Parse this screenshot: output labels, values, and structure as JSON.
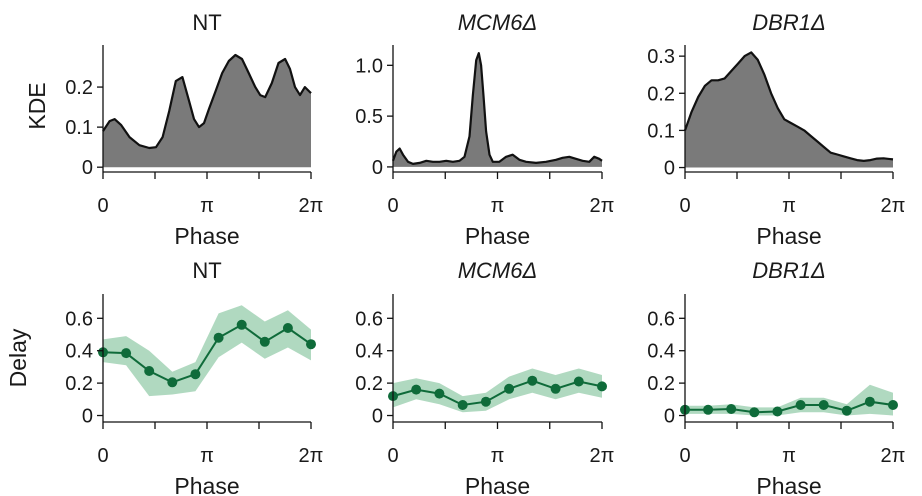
{
  "figure": {
    "row_labels": {
      "kde": "KDE",
      "delay": "Delay"
    },
    "x_label": "Phase",
    "colors": {
      "kde_fill": "#7a7a7a",
      "kde_line": "#111111",
      "delay_line": "#0f6b3a",
      "delay_band": "#9ccfb0",
      "axis": "#111111"
    }
  },
  "chart_data": [
    {
      "type": "area",
      "title": "NT",
      "title_italic": false,
      "xlabel": "Phase",
      "ylabel": "KDE",
      "xlim": [
        0,
        6.2832
      ],
      "ylim": [
        -0.012,
        0.305
      ],
      "xticks": [
        {
          "v": 0,
          "label": "0"
        },
        {
          "v": 3.1416,
          "label": "π"
        },
        {
          "v": 6.2832,
          "label": "2π"
        }
      ],
      "xminor": [
        1.5708,
        4.7124
      ],
      "yticks": [
        {
          "v": 0,
          "label": "0"
        },
        {
          "v": 0.1,
          "label": "0.1"
        },
        {
          "v": 0.2,
          "label": "0.2"
        }
      ],
      "x": [
        0,
        0.2,
        0.35,
        0.55,
        0.8,
        1.1,
        1.4,
        1.6,
        1.8,
        2.0,
        2.2,
        2.4,
        2.6,
        2.75,
        2.9,
        3.05,
        3.2,
        3.4,
        3.6,
        3.8,
        4.0,
        4.2,
        4.4,
        4.6,
        4.75,
        4.9,
        5.1,
        5.3,
        5.5,
        5.65,
        5.8,
        5.95,
        6.1,
        6.2832
      ],
      "values": [
        0.09,
        0.115,
        0.12,
        0.105,
        0.075,
        0.055,
        0.048,
        0.05,
        0.075,
        0.14,
        0.215,
        0.225,
        0.165,
        0.12,
        0.1,
        0.11,
        0.145,
        0.19,
        0.235,
        0.265,
        0.28,
        0.27,
        0.235,
        0.2,
        0.18,
        0.175,
        0.21,
        0.26,
        0.27,
        0.245,
        0.2,
        0.18,
        0.2,
        0.185
      ]
    },
    {
      "type": "area",
      "title": "MCM6Δ",
      "title_italic": true,
      "xlabel": "Phase",
      "ylabel": "",
      "xlim": [
        0,
        6.2832
      ],
      "ylim": [
        -0.05,
        1.2
      ],
      "xticks": [
        {
          "v": 0,
          "label": "0"
        },
        {
          "v": 3.1416,
          "label": "π"
        },
        {
          "v": 6.2832,
          "label": "2π"
        }
      ],
      "xminor": [
        1.5708,
        4.7124
      ],
      "yticks": [
        {
          "v": 0,
          "label": "0"
        },
        {
          "v": 0.5,
          "label": "0.5"
        },
        {
          "v": 1.0,
          "label": "1.0"
        }
      ],
      "x": [
        0,
        0.1,
        0.2,
        0.3,
        0.45,
        0.6,
        0.8,
        1.0,
        1.2,
        1.4,
        1.6,
        1.8,
        2.0,
        2.15,
        2.3,
        2.4,
        2.5,
        2.58,
        2.65,
        2.72,
        2.8,
        2.9,
        3.0,
        3.2,
        3.4,
        3.6,
        3.8,
        4.0,
        4.3,
        4.6,
        4.9,
        5.1,
        5.3,
        5.5,
        5.7,
        5.9,
        6.05,
        6.2,
        6.2832
      ],
      "values": [
        0.06,
        0.15,
        0.18,
        0.12,
        0.05,
        0.03,
        0.04,
        0.06,
        0.05,
        0.05,
        0.06,
        0.05,
        0.06,
        0.1,
        0.3,
        0.7,
        1.05,
        1.12,
        1.0,
        0.7,
        0.35,
        0.12,
        0.05,
        0.05,
        0.1,
        0.12,
        0.07,
        0.05,
        0.04,
        0.05,
        0.07,
        0.09,
        0.1,
        0.08,
        0.06,
        0.05,
        0.1,
        0.08,
        0.06
      ]
    },
    {
      "type": "area",
      "title": "DBR1Δ",
      "title_italic": true,
      "xlabel": "Phase",
      "ylabel": "",
      "xlim": [
        0,
        6.2832
      ],
      "ylim": [
        -0.012,
        0.33
      ],
      "xticks": [
        {
          "v": 0,
          "label": "0"
        },
        {
          "v": 3.1416,
          "label": "π"
        },
        {
          "v": 6.2832,
          "label": "2π"
        }
      ],
      "xminor": [
        1.5708,
        4.7124
      ],
      "yticks": [
        {
          "v": 0,
          "label": "0"
        },
        {
          "v": 0.1,
          "label": "0.1"
        },
        {
          "v": 0.2,
          "label": "0.2"
        },
        {
          "v": 0.3,
          "label": "0.3"
        }
      ],
      "x": [
        0,
        0.2,
        0.4,
        0.6,
        0.8,
        1.0,
        1.2,
        1.4,
        1.6,
        1.8,
        2.0,
        2.2,
        2.4,
        2.6,
        2.8,
        3.0,
        3.2,
        3.4,
        3.6,
        3.8,
        4.0,
        4.2,
        4.4,
        4.6,
        4.8,
        5.0,
        5.2,
        5.4,
        5.6,
        5.8,
        6.0,
        6.2832
      ],
      "values": [
        0.1,
        0.15,
        0.19,
        0.22,
        0.235,
        0.235,
        0.24,
        0.26,
        0.28,
        0.3,
        0.31,
        0.29,
        0.25,
        0.2,
        0.16,
        0.13,
        0.12,
        0.11,
        0.1,
        0.085,
        0.07,
        0.055,
        0.04,
        0.035,
        0.03,
        0.025,
        0.02,
        0.018,
        0.02,
        0.024,
        0.025,
        0.022
      ]
    },
    {
      "type": "line",
      "title": "NT",
      "title_italic": false,
      "xlabel": "Phase",
      "ylabel": "Delay",
      "xlim": [
        0,
        6.2832
      ],
      "ylim": [
        -0.04,
        0.75
      ],
      "xticks": [
        {
          "v": 0,
          "label": "0"
        },
        {
          "v": 3.1416,
          "label": "π"
        },
        {
          "v": 6.2832,
          "label": "2π"
        }
      ],
      "xminor": [
        1.5708,
        4.7124
      ],
      "yticks": [
        {
          "v": 0,
          "label": "0"
        },
        {
          "v": 0.2,
          "label": "0.2"
        },
        {
          "v": 0.4,
          "label": "0.4"
        },
        {
          "v": 0.6,
          "label": "0.6"
        }
      ],
      "x": [
        0,
        0.6981,
        1.3963,
        2.0944,
        2.7925,
        3.4907,
        4.1888,
        4.8869,
        5.5851,
        6.2832
      ],
      "values": [
        0.39,
        0.385,
        0.275,
        0.205,
        0.255,
        0.48,
        0.56,
        0.455,
        0.54,
        0.44
      ],
      "band_lower": [
        0.33,
        0.31,
        0.12,
        0.13,
        0.15,
        0.36,
        0.45,
        0.35,
        0.42,
        0.34
      ],
      "band_upper": [
        0.47,
        0.49,
        0.4,
        0.27,
        0.33,
        0.63,
        0.68,
        0.58,
        0.65,
        0.53
      ]
    },
    {
      "type": "line",
      "title": "MCM6Δ",
      "title_italic": true,
      "xlabel": "Phase",
      "ylabel": "",
      "xlim": [
        0,
        6.2832
      ],
      "ylim": [
        -0.04,
        0.75
      ],
      "xticks": [
        {
          "v": 0,
          "label": "0"
        },
        {
          "v": 3.1416,
          "label": "π"
        },
        {
          "v": 6.2832,
          "label": "2π"
        }
      ],
      "xminor": [
        1.5708,
        4.7124
      ],
      "yticks": [
        {
          "v": 0,
          "label": "0"
        },
        {
          "v": 0.2,
          "label": "0.2"
        },
        {
          "v": 0.4,
          "label": "0.4"
        },
        {
          "v": 0.6,
          "label": "0.6"
        }
      ],
      "x": [
        0,
        0.6981,
        1.3963,
        2.0944,
        2.7925,
        3.4907,
        4.1888,
        4.8869,
        5.5851,
        6.2832
      ],
      "values": [
        0.12,
        0.16,
        0.135,
        0.065,
        0.085,
        0.165,
        0.215,
        0.165,
        0.21,
        0.18
      ],
      "band_lower": [
        0.05,
        0.1,
        0.07,
        0.02,
        0.03,
        0.1,
        0.14,
        0.1,
        0.14,
        0.11
      ],
      "band_upper": [
        0.2,
        0.23,
        0.2,
        0.12,
        0.14,
        0.24,
        0.29,
        0.25,
        0.29,
        0.25
      ]
    },
    {
      "type": "line",
      "title": "DBR1Δ",
      "title_italic": true,
      "xlabel": "Phase",
      "ylabel": "",
      "xlim": [
        0,
        6.2832
      ],
      "ylim": [
        -0.04,
        0.75
      ],
      "xticks": [
        {
          "v": 0,
          "label": "0"
        },
        {
          "v": 3.1416,
          "label": "π"
        },
        {
          "v": 6.2832,
          "label": "2π"
        }
      ],
      "xminor": [
        1.5708,
        4.7124
      ],
      "yticks": [
        {
          "v": 0,
          "label": "0"
        },
        {
          "v": 0.2,
          "label": "0.2"
        },
        {
          "v": 0.4,
          "label": "0.4"
        },
        {
          "v": 0.6,
          "label": "0.6"
        }
      ],
      "x": [
        0,
        0.6981,
        1.3963,
        2.0944,
        2.7925,
        3.4907,
        4.1888,
        4.8869,
        5.5851,
        6.2832
      ],
      "values": [
        0.035,
        0.035,
        0.04,
        0.02,
        0.025,
        0.065,
        0.065,
        0.03,
        0.085,
        0.065
      ],
      "band_lower": [
        0.01,
        0.01,
        0.01,
        0.0,
        0.0,
        0.02,
        0.02,
        0.0,
        0.01,
        0.0
      ],
      "band_upper": [
        0.06,
        0.06,
        0.07,
        0.05,
        0.05,
        0.11,
        0.11,
        0.07,
        0.19,
        0.14
      ]
    }
  ]
}
